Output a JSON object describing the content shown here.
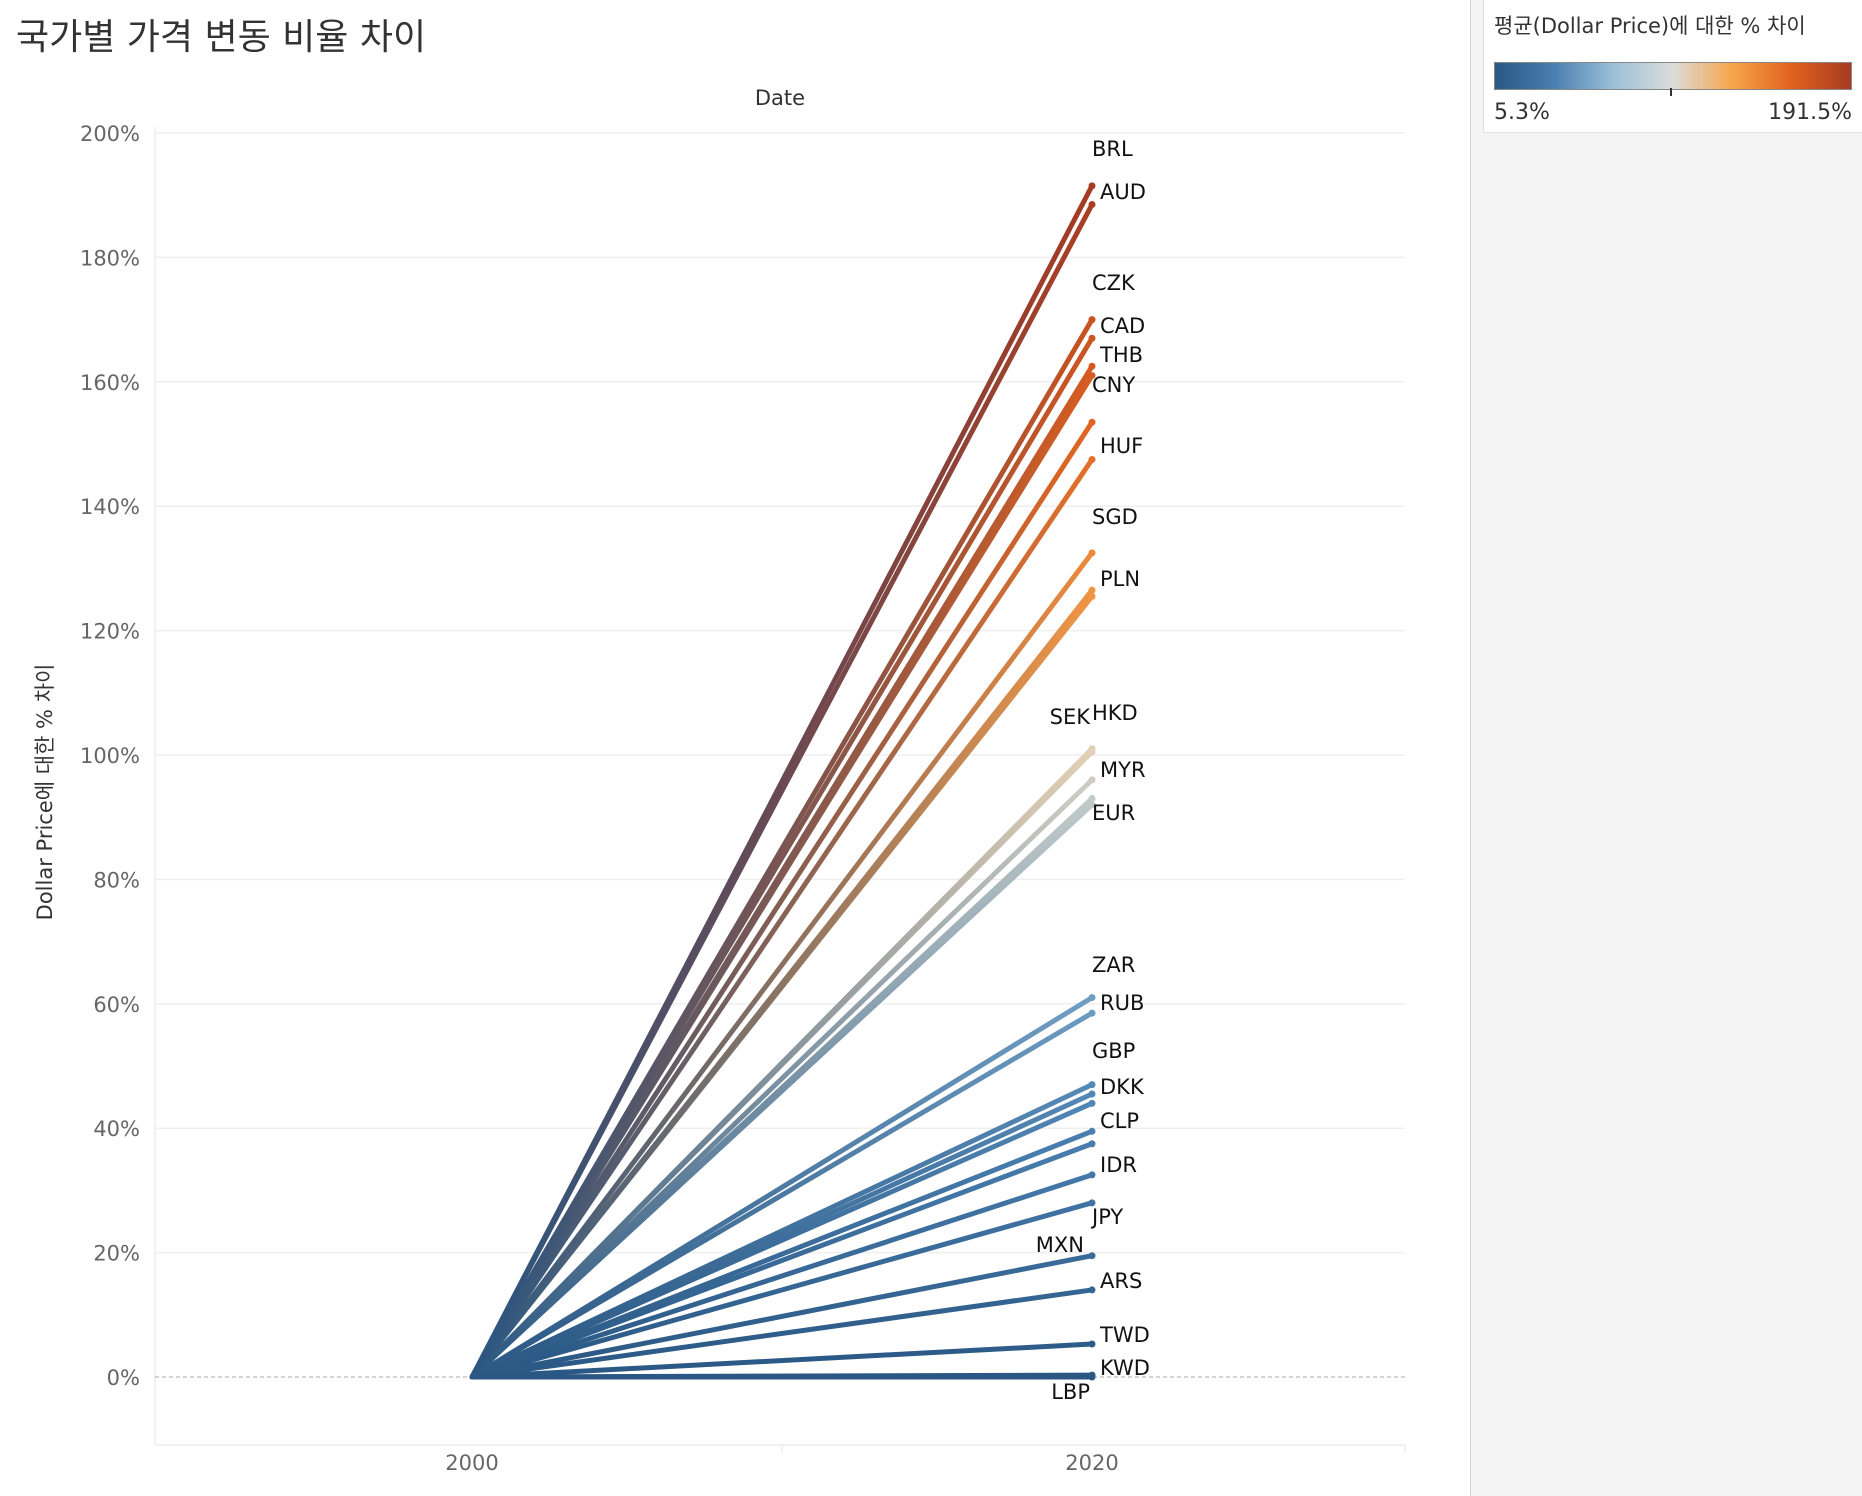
{
  "title": "국가별 가격 변동 비율 차이",
  "legend": {
    "title": "평균(Dollar Price)에 대한 % 차이",
    "min_label": "5.3%",
    "max_label": "191.5%",
    "colors": [
      "#2a5783",
      "#4a7fb0",
      "#9cc0d8",
      "#dcdcdc",
      "#f7a54a",
      "#e0621f",
      "#a63a22"
    ]
  },
  "chart_data": {
    "type": "line",
    "title": "국가별 가격 변동 비율 차이",
    "xlabel": "Date",
    "ylabel": "Dollar Price에 대한 % 차이",
    "x": [
      2000,
      2020
    ],
    "x_ticks": [
      "2000",
      "2020"
    ],
    "ylim": [
      -10,
      200
    ],
    "y_ticks": [
      0,
      20,
      40,
      60,
      80,
      100,
      120,
      140,
      160,
      180,
      200
    ],
    "y_tick_labels": [
      "0%",
      "20%",
      "40%",
      "60%",
      "80%",
      "100%",
      "120%",
      "140%",
      "160%",
      "180%",
      "200%"
    ],
    "grid": true,
    "zero_line": "dashed",
    "series": [
      {
        "name": "BRL",
        "values": [
          0,
          191.5
        ]
      },
      {
        "name": "AUD",
        "values": [
          0,
          188.5
        ]
      },
      {
        "name": "CZK",
        "values": [
          0,
          170
        ]
      },
      {
        "name": "CAD",
        "values": [
          0,
          167
        ]
      },
      {
        "name": "THB",
        "values": [
          0,
          162.5
        ]
      },
      {
        "name": "CNY",
        "values": [
          0,
          161
        ]
      },
      {
        "name": "HUF",
        "values": [
          0,
          153.5
        ]
      },
      {
        "name": "",
        "values": [
          0,
          147.5
        ]
      },
      {
        "name": "SGD",
        "values": [
          0,
          132.5
        ]
      },
      {
        "name": "PLN",
        "values": [
          0,
          126.5
        ]
      },
      {
        "name": "",
        "values": [
          0,
          125.5
        ]
      },
      {
        "name": "SEK",
        "values": [
          0,
          100.5
        ]
      },
      {
        "name": "HKD",
        "values": [
          0,
          101
        ]
      },
      {
        "name": "MYR",
        "values": [
          0,
          96
        ]
      },
      {
        "name": "",
        "values": [
          0,
          93
        ]
      },
      {
        "name": "EUR",
        "values": [
          0,
          92
        ]
      },
      {
        "name": "ZAR",
        "values": [
          0,
          61
        ]
      },
      {
        "name": "RUB",
        "values": [
          0,
          58.5
        ]
      },
      {
        "name": "GBP",
        "values": [
          0,
          47
        ]
      },
      {
        "name": "DKK",
        "values": [
          0,
          45.5
        ]
      },
      {
        "name": "",
        "values": [
          0,
          44
        ]
      },
      {
        "name": "CLP",
        "values": [
          0,
          39.5
        ]
      },
      {
        "name": "",
        "values": [
          0,
          37.5
        ]
      },
      {
        "name": "IDR",
        "values": [
          0,
          32.5
        ]
      },
      {
        "name": "JPY",
        "values": [
          0,
          28
        ]
      },
      {
        "name": "MXN",
        "values": [
          0,
          19.5
        ]
      },
      {
        "name": "ARS",
        "values": [
          0,
          14
        ]
      },
      {
        "name": "TWD",
        "values": [
          0,
          5.3
        ]
      },
      {
        "name": "KWD",
        "values": [
          0,
          0.3
        ]
      },
      {
        "name": "LBP",
        "values": [
          0,
          0
        ]
      }
    ]
  }
}
